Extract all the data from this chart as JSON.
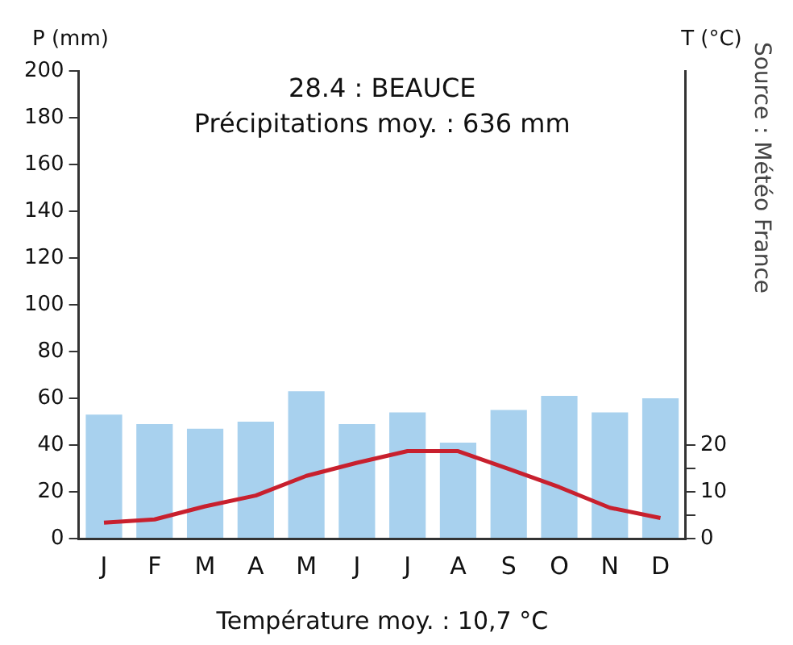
{
  "chart_data": {
    "type": "bar",
    "title": "28.4 : BEAUCE",
    "subtitle": "Précipitations moy. : 636 mm",
    "ylabel": "P (mm)",
    "y2label": "T (°C)",
    "categories": [
      "J",
      "F",
      "M",
      "A",
      "M",
      "J",
      "J",
      "A",
      "S",
      "O",
      "N",
      "D"
    ],
    "series": [
      {
        "color": "#a8d1ee",
        "values": [
          53,
          49,
          47,
          50,
          63,
          49,
          54,
          41,
          55,
          61,
          54,
          60
        ]
      },
      {
        "type": "line",
        "axis": "y2",
        "color": "#c8202e",
        "marker": "none",
        "values": [
          3.4,
          4.1,
          6.9,
          9.2,
          13.4,
          16.2,
          18.7,
          18.7,
          14.9,
          11,
          6.6,
          4.4
        ]
      }
    ],
    "ylim": [
      0,
      200
    ],
    "yticks": [
      0,
      20,
      40,
      60,
      80,
      100,
      120,
      140,
      160,
      180,
      200
    ],
    "y2lim": [
      0,
      100
    ],
    "y2ticks": [
      0,
      {
        "value": 5,
        "label": null
      },
      10,
      {
        "value": 15,
        "label": null
      },
      20
    ],
    "grid": false,
    "legend": false,
    "annotations": [
      "Température moy. : 10,7 °C",
      "Source : Météo France"
    ]
  }
}
